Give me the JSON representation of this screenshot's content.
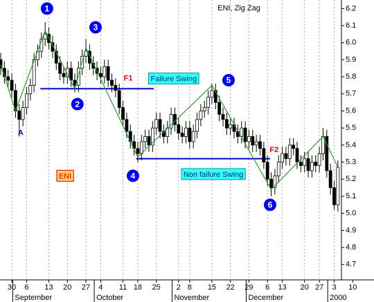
{
  "chart_data": {
    "type": "candlestick",
    "title": "ENI, Zig Zag",
    "categories": [
      null,
      null,
      null,
      "30",
      null,
      null,
      null,
      "6",
      null,
      null,
      null,
      null,
      null,
      "13",
      null,
      null,
      null,
      null,
      "20",
      null,
      null,
      null,
      null,
      "27",
      null,
      null,
      null,
      "4",
      null,
      null,
      null,
      null,
      null,
      "11",
      null,
      null,
      null,
      "18",
      null,
      null,
      null,
      null,
      "25",
      null,
      null,
      null,
      null,
      null,
      "2",
      null,
      null,
      "8",
      null,
      null,
      null,
      null,
      null,
      "15",
      null,
      null,
      null,
      null,
      "22",
      null,
      null,
      null,
      null,
      "29",
      null,
      null,
      null,
      null,
      "6",
      null,
      null,
      null,
      "13",
      null,
      null,
      null,
      null,
      null,
      "20",
      null,
      null,
      null,
      "27",
      null,
      null,
      null,
      "3",
      null,
      null,
      null,
      null,
      "10"
    ],
    "months": [
      null,
      null,
      null,
      null,
      "September",
      null,
      null,
      null,
      null,
      null,
      null,
      null,
      null,
      null,
      null,
      null,
      null,
      null,
      null,
      null,
      null,
      null,
      null,
      null,
      null,
      null,
      "October",
      null,
      null,
      null,
      null,
      null,
      null,
      null,
      null,
      null,
      null,
      null,
      null,
      null,
      null,
      null,
      null,
      null,
      null,
      null,
      null,
      "November",
      null,
      null,
      null,
      null,
      null,
      null,
      null,
      null,
      null,
      null,
      null,
      null,
      null,
      null,
      null,
      null,
      null,
      null,
      null,
      "December",
      null,
      null,
      null,
      null,
      null,
      null,
      null,
      null,
      null,
      null,
      null,
      null,
      null,
      null,
      null,
      null,
      null,
      null,
      null,
      null,
      null,
      "2000",
      null,
      null,
      null,
      null,
      null,
      null
    ],
    "open": [
      5.9,
      5.85,
      5.8,
      5.78,
      5.72,
      5.6,
      5.55,
      5.62,
      5.7,
      5.75,
      5.9,
      5.95,
      6.02,
      6.05,
      6.0,
      5.95,
      5.88,
      5.82,
      5.8,
      5.85,
      5.78,
      5.75,
      5.85,
      5.92,
      5.95,
      5.88,
      5.85,
      5.82,
      5.8,
      5.86,
      5.78,
      5.75,
      5.72,
      5.62,
      5.55,
      5.48,
      5.42,
      5.38,
      5.35,
      5.42,
      5.45,
      5.4,
      5.5,
      5.55,
      5.48,
      5.45,
      5.5,
      5.58,
      5.52,
      5.47,
      5.45,
      5.5,
      5.42,
      5.48,
      5.55,
      5.6,
      5.62,
      5.68,
      5.72,
      5.65,
      5.58,
      5.55,
      5.5,
      5.52,
      5.48,
      5.45,
      5.5,
      5.42,
      5.45,
      5.4,
      5.42,
      5.38,
      5.3,
      5.2,
      5.15,
      5.22,
      5.3,
      5.35,
      5.32,
      5.4,
      5.38,
      5.3,
      5.28,
      5.32,
      5.25,
      5.3,
      5.28,
      5.35,
      5.45,
      5.25,
      5.15,
      5.05,
      null,
      null,
      null,
      null
    ],
    "high": [
      5.94,
      5.89,
      5.84,
      5.82,
      5.76,
      5.64,
      5.66,
      5.74,
      5.79,
      5.94,
      5.99,
      6.06,
      6.12,
      6.09,
      6.04,
      5.99,
      5.92,
      5.86,
      5.89,
      5.89,
      5.82,
      5.89,
      5.96,
      6.02,
      5.99,
      5.92,
      5.89,
      5.86,
      5.9,
      5.9,
      5.82,
      5.79,
      5.76,
      5.66,
      5.59,
      5.52,
      5.46,
      5.42,
      5.46,
      5.49,
      5.49,
      5.54,
      5.59,
      5.59,
      5.52,
      5.54,
      5.62,
      5.62,
      5.56,
      5.51,
      5.54,
      5.54,
      5.52,
      5.59,
      5.64,
      5.66,
      5.72,
      5.76,
      5.76,
      5.69,
      5.62,
      5.59,
      5.56,
      5.56,
      5.52,
      5.54,
      5.54,
      5.49,
      5.49,
      5.46,
      5.46,
      5.42,
      5.34,
      5.24,
      5.26,
      5.34,
      5.39,
      5.39,
      5.44,
      5.44,
      5.42,
      5.34,
      5.36,
      5.36,
      5.34,
      5.34,
      5.39,
      5.5,
      5.49,
      5.29,
      5.19,
      5.31,
      null,
      null,
      null,
      null
    ],
    "low": [
      5.81,
      5.76,
      5.74,
      5.68,
      5.56,
      5.45,
      5.51,
      5.58,
      5.66,
      5.71,
      5.86,
      5.91,
      5.98,
      5.96,
      5.91,
      5.84,
      5.78,
      5.76,
      5.76,
      5.74,
      5.71,
      5.71,
      5.81,
      5.88,
      5.84,
      5.81,
      5.78,
      5.76,
      5.76,
      5.74,
      5.71,
      5.68,
      5.58,
      5.51,
      5.44,
      5.38,
      5.34,
      5.3,
      5.31,
      5.38,
      5.36,
      5.36,
      5.46,
      5.44,
      5.41,
      5.41,
      5.46,
      5.48,
      5.43,
      5.41,
      5.41,
      5.38,
      5.38,
      5.44,
      5.51,
      5.56,
      5.58,
      5.64,
      5.61,
      5.54,
      5.51,
      5.46,
      5.46,
      5.44,
      5.41,
      5.41,
      5.38,
      5.38,
      5.36,
      5.36,
      5.34,
      5.26,
      5.16,
      5.1,
      5.11,
      5.18,
      5.26,
      5.28,
      5.28,
      5.34,
      5.26,
      5.24,
      5.24,
      5.21,
      5.21,
      5.24,
      5.24,
      5.31,
      5.21,
      5.11,
      5.02,
      5.01,
      null,
      null,
      null,
      null
    ],
    "close": [
      5.85,
      5.8,
      5.78,
      5.72,
      5.6,
      5.55,
      5.62,
      5.7,
      5.75,
      5.9,
      5.95,
      6.02,
      6.05,
      6.0,
      5.95,
      5.88,
      5.82,
      5.8,
      5.85,
      5.78,
      5.75,
      5.85,
      5.92,
      5.95,
      5.88,
      5.85,
      5.82,
      5.8,
      5.86,
      5.78,
      5.75,
      5.72,
      5.62,
      5.55,
      5.48,
      5.42,
      5.38,
      5.35,
      5.42,
      5.45,
      5.4,
      5.5,
      5.55,
      5.48,
      5.45,
      5.5,
      5.58,
      5.52,
      5.47,
      5.45,
      5.5,
      5.42,
      5.48,
      5.55,
      5.6,
      5.62,
      5.68,
      5.72,
      5.65,
      5.58,
      5.55,
      5.5,
      5.52,
      5.48,
      5.45,
      5.5,
      5.42,
      5.45,
      5.4,
      5.42,
      5.38,
      5.3,
      5.2,
      5.15,
      5.22,
      5.3,
      5.35,
      5.32,
      5.4,
      5.38,
      5.3,
      5.28,
      5.32,
      5.25,
      5.3,
      5.28,
      5.35,
      5.45,
      5.25,
      5.15,
      5.05,
      5.27,
      null,
      null,
      null,
      null
    ],
    "up_color": "#ffffff",
    "down_color": "#000000",
    "zigzag": {
      "color": "#2e9a2e",
      "values": [
        5.87,
        null,
        null,
        null,
        5.6,
        null,
        null,
        null,
        null,
        null,
        null,
        null,
        6.07,
        null,
        null,
        null,
        null,
        null,
        null,
        null,
        5.73,
        null,
        null,
        5.97,
        null,
        null,
        null,
        null,
        null,
        null,
        null,
        null,
        null,
        null,
        null,
        null,
        null,
        5.33,
        null,
        null,
        null,
        null,
        null,
        null,
        null,
        null,
        null,
        null,
        null,
        null,
        null,
        null,
        null,
        null,
        null,
        null,
        null,
        5.75,
        null,
        null,
        null,
        null,
        null,
        null,
        null,
        null,
        null,
        null,
        null,
        null,
        null,
        null,
        null,
        5.14,
        null,
        null,
        null,
        null,
        null,
        null,
        null,
        null,
        null,
        null,
        null,
        null,
        null,
        5.45,
        null,
        null,
        null,
        5.27,
        null,
        null,
        null,
        null
      ]
    },
    "levels": [
      {
        "value": 5.73,
        "from": 10.7,
        "to": 41.3,
        "color": "#0000cc"
      },
      {
        "value": 5.32,
        "from": 36.6,
        "to": 72.7,
        "color": "#0000cc"
      }
    ],
    "ylim": [
      4.61,
      6.25
    ],
    "yticks": [
      6.2,
      6.1,
      {
        "value": 6,
        "label": "6.0"
      },
      5.9,
      5.8,
      5.7,
      5.6,
      5.5,
      5.4,
      5.3,
      5.2,
      5.1,
      {
        "value": 5,
        "label": "5.0"
      },
      4.9,
      4.8,
      4.7
    ],
    "grid": true,
    "annotations": [
      {
        "text": "1",
        "kind": "circle",
        "x": 12.5,
        "y": 6.2
      },
      {
        "text": "2",
        "kind": "circle",
        "x": 20.7,
        "y": 5.64
      },
      {
        "text": "3",
        "kind": "circle",
        "x": 25.6,
        "y": 6.09
      },
      {
        "text": "4",
        "kind": "circle",
        "x": 35.7,
        "y": 5.22
      },
      {
        "text": "5",
        "kind": "circle",
        "x": 61.5,
        "y": 5.78
      },
      {
        "text": "6",
        "kind": "circle",
        "x": 72.7,
        "y": 5.05
      },
      {
        "text": "A",
        "kind": "blue",
        "x": 5.4,
        "y": 5.47
      },
      {
        "text": "F1",
        "kind": "red",
        "x": 34.4,
        "y": 5.79
      },
      {
        "text": "F2",
        "kind": "red",
        "x": 73.8,
        "y": 5.37
      },
      {
        "text": "Failure Swing",
        "kind": "box",
        "x": 46.7,
        "y": 5.79
      },
      {
        "text": "Non failure Swing",
        "kind": "box",
        "x": 57.4,
        "y": 5.23
      },
      {
        "text": "ENI",
        "kind": "box-orange",
        "x": 17.4,
        "y": 5.22
      }
    ]
  }
}
